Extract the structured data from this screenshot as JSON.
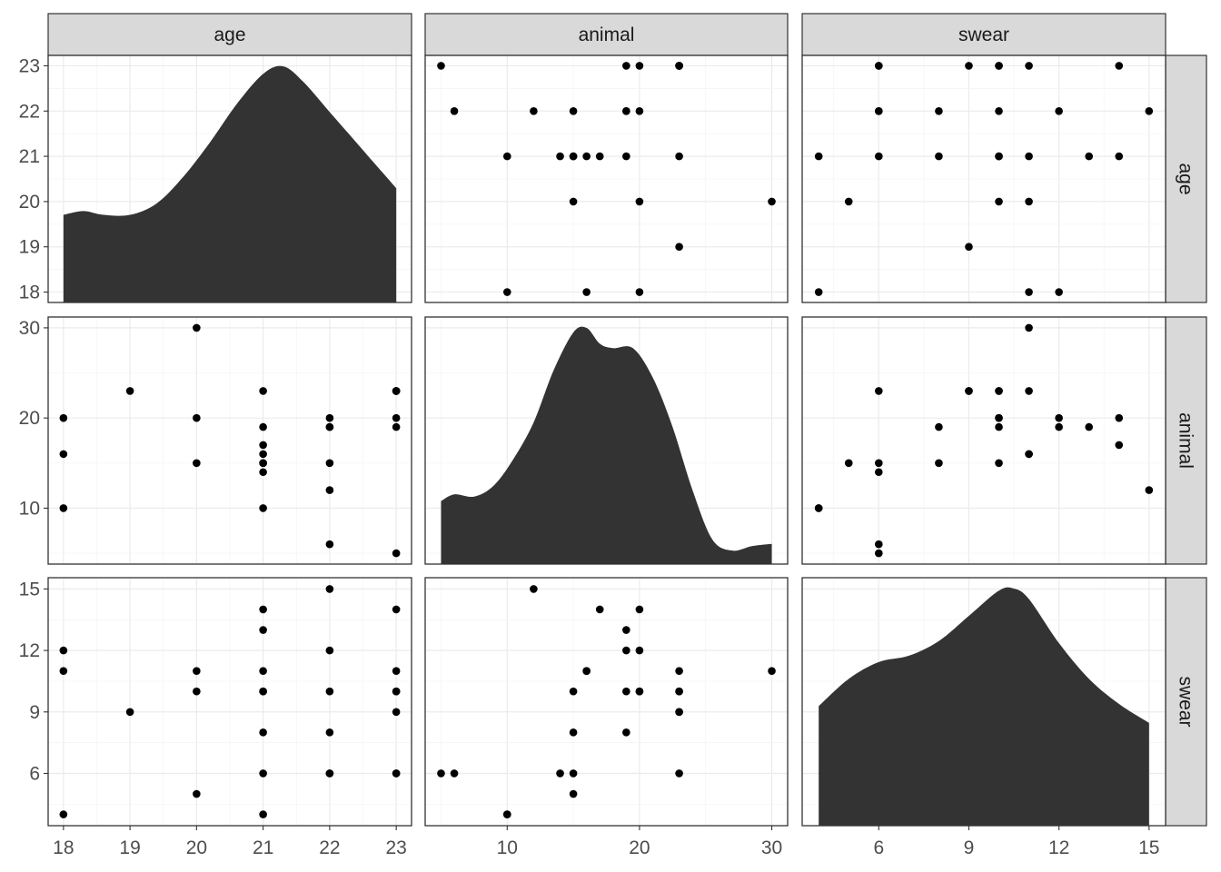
{
  "chart_data": {
    "type": "scatter",
    "layout": "pairs-matrix",
    "variables": [
      "age",
      "animal",
      "swear"
    ],
    "ranges": {
      "age": [
        17.77,
        23.23
      ],
      "animal": [
        3.8,
        31.2
      ],
      "swear": [
        3.45,
        15.55
      ]
    },
    "ticks": {
      "age": [
        18,
        19,
        20,
        21,
        22,
        23
      ],
      "animal": [
        10,
        20,
        30
      ],
      "swear": [
        6,
        9,
        12,
        15
      ]
    },
    "grid": true,
    "diagonal": {
      "type": "density",
      "age": {
        "x": [
          18,
          18.3,
          18.6,
          19,
          19.4,
          19.8,
          20.2,
          20.6,
          21,
          21.3,
          21.6,
          22,
          22.4,
          22.8,
          23
        ],
        "y": [
          0.23,
          0.24,
          0.23,
          0.23,
          0.26,
          0.33,
          0.42,
          0.52,
          0.6,
          0.62,
          0.58,
          0.5,
          0.42,
          0.34,
          0.3
        ]
      },
      "animal": {
        "x": [
          5,
          6,
          7.5,
          9,
          10.5,
          12,
          13.5,
          15,
          16,
          17,
          18,
          19.5,
          21,
          22.5,
          24,
          25.5,
          27,
          28.5,
          30
        ],
        "y": [
          0.028,
          0.031,
          0.03,
          0.035,
          0.047,
          0.063,
          0.086,
          0.103,
          0.105,
          0.098,
          0.096,
          0.096,
          0.083,
          0.061,
          0.033,
          0.011,
          0.006,
          0.008,
          0.009
        ]
      },
      "swear": {
        "x": [
          4,
          5,
          6,
          7,
          8,
          9,
          10,
          10.5,
          11,
          12,
          13,
          14,
          15
        ],
        "y": [
          0.057,
          0.07,
          0.078,
          0.081,
          0.088,
          0.1,
          0.112,
          0.113,
          0.108,
          0.087,
          0.07,
          0.058,
          0.049
        ]
      }
    },
    "observations": [
      {
        "age": 18,
        "animal": 10,
        "swear": 4
      },
      {
        "age": 18,
        "animal": 16,
        "swear": 11
      },
      {
        "age": 18,
        "animal": 20,
        "swear": 12
      },
      {
        "age": 19,
        "animal": 23,
        "swear": 9
      },
      {
        "age": 20,
        "animal": 30,
        "swear": 11
      },
      {
        "age": 20,
        "animal": 20,
        "swear": 10
      },
      {
        "age": 20,
        "animal": 15,
        "swear": 5
      },
      {
        "age": 21,
        "animal": 23,
        "swear": 10
      },
      {
        "age": 21,
        "animal": 19,
        "swear": 13
      },
      {
        "age": 21,
        "animal": 17,
        "swear": 14
      },
      {
        "age": 21,
        "animal": 16,
        "swear": 11
      },
      {
        "age": 21,
        "animal": 15,
        "swear": 8
      },
      {
        "age": 21,
        "animal": 14,
        "swear": 6
      },
      {
        "age": 21,
        "animal": 10,
        "swear": 4
      },
      {
        "age": 21,
        "animal": 15,
        "swear": 10
      },
      {
        "age": 22,
        "animal": 20,
        "swear": 10
      },
      {
        "age": 22,
        "animal": 19,
        "swear": 8
      },
      {
        "age": 22,
        "animal": 15,
        "swear": 6
      },
      {
        "age": 22,
        "animal": 12,
        "swear": 15
      },
      {
        "age": 22,
        "animal": 6,
        "swear": 6
      },
      {
        "age": 22,
        "animal": 19,
        "swear": 12
      },
      {
        "age": 23,
        "animal": 20,
        "swear": 14
      },
      {
        "age": 23,
        "animal": 19,
        "swear": 10
      },
      {
        "age": 23,
        "animal": 5,
        "swear": 6
      },
      {
        "age": 23,
        "animal": 23,
        "swear": 6
      },
      {
        "age": 23,
        "animal": 23,
        "swear": 9
      },
      {
        "age": 23,
        "animal": 23,
        "swear": 11
      },
      {
        "age": 23,
        "animal": 23,
        "swear": 10
      }
    ]
  }
}
